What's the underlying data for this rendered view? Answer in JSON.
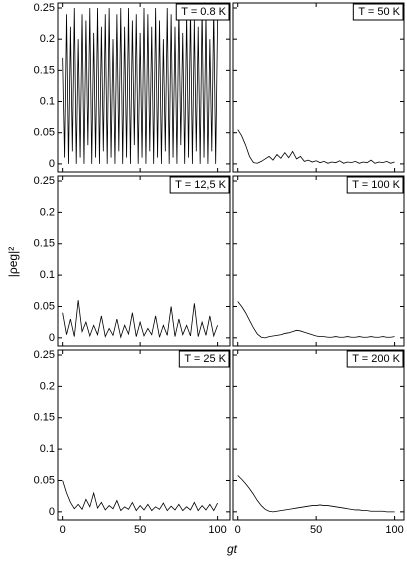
{
  "xlabel": "gt",
  "ylabel": "|ρeg|²",
  "chart_data": [
    {
      "type": "line",
      "title": "T = 0.8 K",
      "color": "#000000",
      "x": [
        0,
        1.25,
        2.5,
        3.75,
        5,
        6.25,
        7.5,
        8.75,
        10,
        11.25,
        12.5,
        13.75,
        15,
        16.25,
        17.5,
        18.75,
        20,
        21.25,
        22.5,
        23.75,
        25,
        26.25,
        27.5,
        28.75,
        30,
        31.25,
        32.5,
        33.75,
        35,
        36.25,
        37.5,
        38.75,
        40,
        41.25,
        42.5,
        43.75,
        45,
        46.25,
        47.5,
        48.75,
        50,
        51.25,
        52.5,
        53.75,
        55,
        56.25,
        57.5,
        58.75,
        60,
        61.25,
        62.5,
        63.75,
        65,
        66.25,
        67.5,
        68.75,
        70,
        71.25,
        72.5,
        73.75,
        75,
        76.25,
        77.5,
        78.75,
        80,
        81.25,
        82.5,
        83.75,
        85,
        86.25,
        87.5,
        88.75,
        90,
        91.25,
        92.5,
        93.75,
        95,
        96.25,
        97.5,
        98.75,
        100
      ],
      "values": [
        0.17,
        0.01,
        0.24,
        0,
        0.22,
        0.02,
        0.25,
        0,
        0.2,
        0.01,
        0.24,
        0,
        0.23,
        0.03,
        0.25,
        0,
        0.21,
        0.01,
        0.25,
        0,
        0.22,
        0.02,
        0.24,
        0,
        0.25,
        0.01,
        0.2,
        0,
        0.24,
        0.02,
        0.25,
        0,
        0.22,
        0.01,
        0.25,
        0,
        0.23,
        0.03,
        0.24,
        0,
        0.21,
        0.01,
        0.25,
        0,
        0.24,
        0.02,
        0.22,
        0,
        0.25,
        0.01,
        0.23,
        0,
        0.2,
        0.02,
        0.25,
        0,
        0.24,
        0.01,
        0.22,
        0,
        0.25,
        0.03,
        0.21,
        0,
        0.24,
        0.01,
        0.25,
        0,
        0.23,
        0.02,
        0.22,
        0,
        0.25,
        0.01,
        0.24,
        0,
        0.2,
        0.02,
        0.25,
        0,
        0.23
      ],
      "xlim": [
        -3,
        108
      ],
      "ylim": [
        -0.013,
        0.258
      ],
      "xticks": [
        0,
        50,
        100
      ],
      "yticks": [
        0,
        0.05,
        0.1,
        0.15,
        0.2,
        0.25
      ]
    },
    {
      "type": "line",
      "title": "T = 50 K",
      "color": "#000000",
      "x": [
        0,
        2.5,
        5,
        7.5,
        10,
        12.5,
        15,
        17.5,
        20,
        22.5,
        25,
        27.5,
        30,
        32.5,
        35,
        37.5,
        40,
        42.5,
        45,
        47.5,
        50,
        52.5,
        55,
        57.5,
        60,
        62.5,
        65,
        67.5,
        70,
        72.5,
        75,
        77.5,
        80,
        82.5,
        85,
        87.5,
        90,
        92.5,
        95,
        97.5,
        100
      ],
      "values": [
        0.055,
        0.045,
        0.03,
        0.012,
        0.002,
        0.001,
        0.004,
        0.008,
        0.012,
        0.006,
        0.015,
        0.009,
        0.018,
        0.01,
        0.02,
        0.008,
        0.012,
        0.004,
        0.006,
        0.003,
        0.005,
        0.002,
        0.004,
        0.001,
        0.003,
        0.002,
        0.005,
        0.001,
        0.003,
        0.002,
        0.004,
        0.001,
        0.003,
        0.002,
        0.006,
        0.001,
        0.003,
        0.002,
        0.004,
        0.001,
        0.003
      ],
      "xlim": [
        -3,
        106
      ],
      "ylim": [
        -0.013,
        0.258
      ],
      "xticks": [
        0,
        50,
        100
      ],
      "yticks": [
        0,
        0.05,
        0.1,
        0.15,
        0.2,
        0.25
      ]
    },
    {
      "type": "line",
      "title": "T = 12,5 K",
      "color": "#000000",
      "x": [
        0,
        2.5,
        5,
        7.5,
        10,
        12.5,
        15,
        17.5,
        20,
        22.5,
        25,
        27.5,
        30,
        32.5,
        35,
        37.5,
        40,
        42.5,
        45,
        47.5,
        50,
        52.5,
        55,
        57.5,
        60,
        62.5,
        65,
        67.5,
        70,
        72.5,
        75,
        77.5,
        80,
        82.5,
        85,
        87.5,
        90,
        92.5,
        95,
        97.5,
        100
      ],
      "values": [
        0.04,
        0.005,
        0.03,
        0.002,
        0.06,
        0.01,
        0.025,
        0.003,
        0.02,
        0.005,
        0.035,
        0.002,
        0.015,
        0.004,
        0.03,
        0.001,
        0.02,
        0.006,
        0.04,
        0.002,
        0.025,
        0.003,
        0.015,
        0.005,
        0.035,
        0.001,
        0.02,
        0.004,
        0.05,
        0.002,
        0.03,
        0.005,
        0.02,
        0.003,
        0.055,
        0.002,
        0.025,
        0.004,
        0.035,
        0.003,
        0.02
      ],
      "xlim": [
        -3,
        108
      ],
      "ylim": [
        -0.013,
        0.258
      ],
      "xticks": [
        0,
        50,
        100
      ],
      "yticks": [
        0,
        0.05,
        0.1,
        0.15,
        0.2,
        0.25
      ]
    },
    {
      "type": "line",
      "title": "T = 100 K",
      "color": "#000000",
      "x": [
        0,
        2.5,
        5,
        7.5,
        10,
        12.5,
        15,
        17.5,
        20,
        22.5,
        25,
        27.5,
        30,
        32.5,
        35,
        37.5,
        40,
        42.5,
        45,
        47.5,
        50,
        52.5,
        55,
        57.5,
        60,
        62.5,
        65,
        67.5,
        70,
        72.5,
        75,
        77.5,
        80,
        82.5,
        85,
        87.5,
        90,
        92.5,
        95,
        97.5,
        100
      ],
      "values": [
        0.058,
        0.05,
        0.04,
        0.028,
        0.016,
        0.006,
        0.001,
        0,
        0.002,
        0.003,
        0.004,
        0.005,
        0.007,
        0.008,
        0.01,
        0.012,
        0.011,
        0.009,
        0.007,
        0.005,
        0.003,
        0.002,
        0.002,
        0.001,
        0.001,
        0.002,
        0.001,
        0.001,
        0.002,
        0.001,
        0.001,
        0.002,
        0.001,
        0.001,
        0.002,
        0.001,
        0.001,
        0.002,
        0.001,
        0.001,
        0.002
      ],
      "xlim": [
        -3,
        106
      ],
      "ylim": [
        -0.013,
        0.258
      ],
      "xticks": [
        0,
        50,
        100
      ],
      "yticks": [
        0,
        0.05,
        0.1,
        0.15,
        0.2,
        0.25
      ]
    },
    {
      "type": "line",
      "title": "T = 25 K",
      "color": "#000000",
      "x": [
        0,
        2.5,
        5,
        7.5,
        10,
        12.5,
        15,
        17.5,
        20,
        22.5,
        25,
        27.5,
        30,
        32.5,
        35,
        37.5,
        40,
        42.5,
        45,
        47.5,
        50,
        52.5,
        55,
        57.5,
        60,
        62.5,
        65,
        67.5,
        70,
        72.5,
        75,
        77.5,
        80,
        82.5,
        85,
        87.5,
        90,
        92.5,
        95,
        97.5,
        100
      ],
      "values": [
        0.05,
        0.03,
        0.015,
        0.005,
        0.012,
        0.004,
        0.02,
        0.008,
        0.03,
        0.006,
        0.015,
        0.003,
        0.01,
        0.005,
        0.018,
        0.002,
        0.008,
        0.004,
        0.015,
        0.002,
        0.01,
        0.003,
        0.012,
        0.002,
        0.008,
        0.004,
        0.014,
        0.002,
        0.009,
        0.003,
        0.012,
        0.002,
        0.008,
        0.003,
        0.015,
        0.002,
        0.01,
        0.003,
        0.012,
        0.002,
        0.014
      ],
      "xlim": [
        -3,
        108
      ],
      "ylim": [
        -0.013,
        0.258
      ],
      "xticks": [
        0,
        50,
        100
      ],
      "yticks": [
        0,
        0.05,
        0.1,
        0.15,
        0.2,
        0.25
      ]
    },
    {
      "type": "line",
      "title": "T = 200 K",
      "color": "#000000",
      "x": [
        0,
        2.5,
        5,
        7.5,
        10,
        12.5,
        15,
        17.5,
        20,
        22.5,
        25,
        27.5,
        30,
        32.5,
        35,
        37.5,
        40,
        42.5,
        45,
        47.5,
        50,
        52.5,
        55,
        57.5,
        60,
        62.5,
        65,
        67.5,
        70,
        72.5,
        75,
        77.5,
        80,
        82.5,
        85,
        87.5,
        90,
        92.5,
        95,
        97.5,
        100
      ],
      "values": [
        0.058,
        0.052,
        0.045,
        0.037,
        0.028,
        0.018,
        0.01,
        0.004,
        0.001,
        0,
        0.001,
        0.002,
        0.003,
        0.004,
        0.005,
        0.006,
        0.007,
        0.008,
        0.009,
        0.01,
        0.01,
        0.011,
        0.01,
        0.01,
        0.009,
        0.008,
        0.007,
        0.006,
        0.005,
        0.004,
        0.003,
        0.003,
        0.002,
        0.002,
        0.001,
        0.001,
        0.001,
        0.001,
        0,
        0,
        0
      ],
      "xlim": [
        -3,
        106
      ],
      "ylim": [
        -0.013,
        0.258
      ],
      "xticks": [
        0,
        50,
        100
      ],
      "yticks": [
        0,
        0.05,
        0.1,
        0.15,
        0.2,
        0.25
      ]
    }
  ]
}
